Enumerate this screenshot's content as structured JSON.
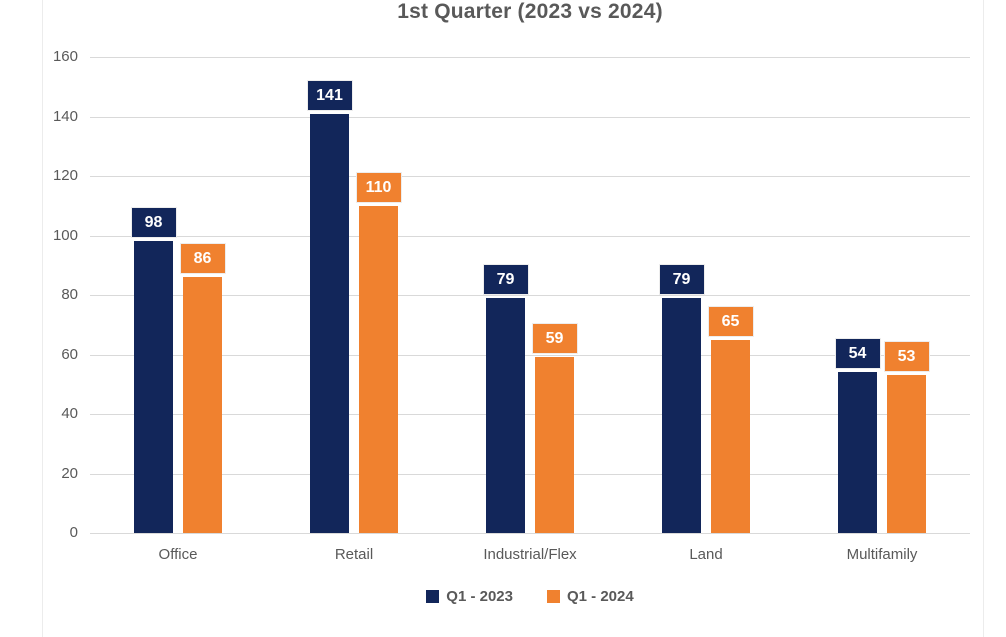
{
  "chart_data": {
    "type": "bar",
    "title": "1st Quarter (2023 vs 2024)",
    "categories": [
      "Office",
      "Retail",
      "Industrial/Flex",
      "Land",
      "Multifamily"
    ],
    "series": [
      {
        "name": "Q1 - 2023",
        "color": "#12265A",
        "values": [
          98,
          141,
          79,
          79,
          54
        ]
      },
      {
        "name": "Q1 - 2024",
        "color": "#F0812F",
        "values": [
          86,
          110,
          59,
          65,
          53
        ]
      }
    ],
    "ylim": [
      0,
      160
    ],
    "yticks": [
      0,
      20,
      40,
      60,
      80,
      100,
      120,
      140,
      160
    ],
    "grid": true,
    "data_labels": true,
    "legend_position": "bottom"
  },
  "colors": {
    "title_text": "#595959",
    "axis_text": "#595959",
    "gridline": "#d9d9d9",
    "data_label_text": "#ffffff",
    "background": "#ffffff"
  }
}
